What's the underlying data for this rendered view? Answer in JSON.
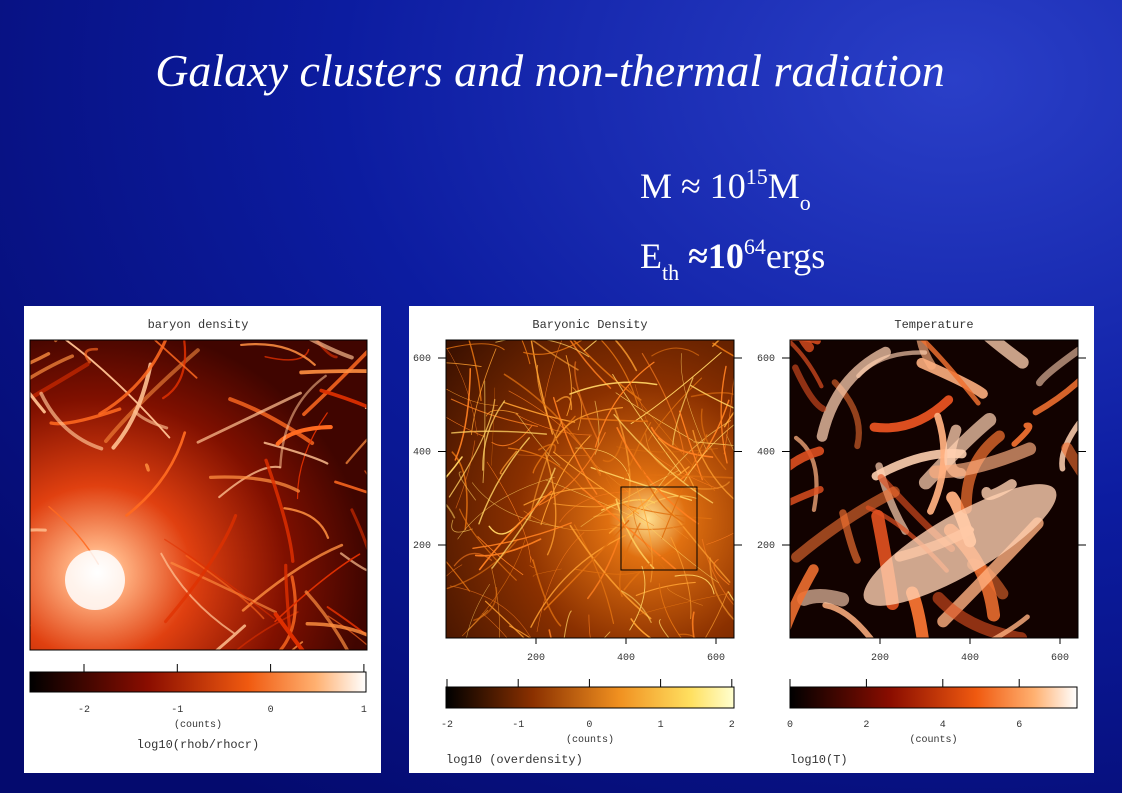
{
  "title": "Galaxy clusters and non-thermal radiation",
  "formulas": [
    {
      "a": "M ≈ 10",
      "sup": "15",
      "b": "M",
      "sub": "o"
    },
    {
      "a": "E",
      "sub": "th",
      "b": " ≈10",
      "sup": "64",
      "c": "ergs"
    }
  ],
  "panels": [
    {
      "title": "baryon density",
      "colorbar_ticks": [
        -2,
        -1,
        0,
        1
      ],
      "units": "(counts)",
      "label": "log10(rhob/rhocr)"
    },
    {
      "title": "Baryonic Density",
      "yticks": [
        600,
        400,
        200
      ],
      "xticks": [
        200,
        400,
        600
      ],
      "colorbar_ticks": [
        -2,
        -1,
        0,
        1,
        2
      ],
      "units": "(counts)",
      "label": "log10 (overdensity)"
    },
    {
      "title": "Temperature",
      "yticks": [
        600,
        400,
        200
      ],
      "xticks": [
        200,
        400,
        600
      ],
      "colorbar_ticks": [
        0,
        2,
        4,
        6
      ],
      "units": "(counts)",
      "label": "log10(T)"
    }
  ]
}
